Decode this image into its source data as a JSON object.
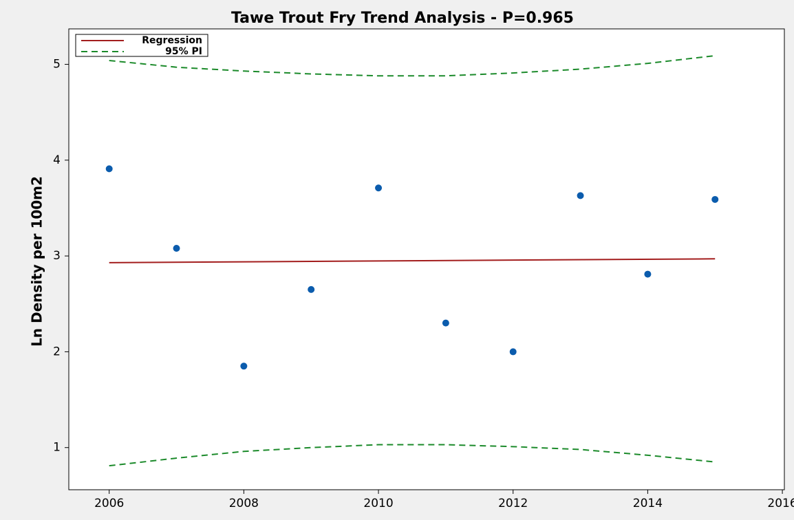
{
  "chart_data": {
    "type": "scatter",
    "title": "Tawe Trout Fry Trend Analysis - P=0.965",
    "ylabel": "Ln Density per 100m2",
    "x": [
      2006,
      2007,
      2008,
      2009,
      2010,
      2011,
      2012,
      2013,
      2014,
      2015
    ],
    "values": [
      3.91,
      3.08,
      1.85,
      2.65,
      3.71,
      2.3,
      2.0,
      3.63,
      2.81,
      3.59
    ],
    "color": "#0b5cad",
    "series": [
      {
        "name": "Regression",
        "color": "#a31d1d",
        "dashed": false,
        "x": [
          2006,
          2015
        ],
        "values": [
          2.93,
          2.97
        ]
      },
      {
        "name": "95% PI",
        "color": "#1b8a2a",
        "dashed": true,
        "x": [
          2006,
          2007,
          2008,
          2009,
          2010,
          2011,
          2012,
          2013,
          2014,
          2015
        ],
        "values": [
          5.04,
          4.97,
          4.93,
          4.9,
          4.88,
          4.88,
          4.91,
          4.95,
          5.01,
          5.09
        ],
        "lower": [
          0.81,
          0.89,
          0.96,
          1.0,
          1.03,
          1.03,
          1.01,
          0.98,
          0.92,
          0.85
        ]
      }
    ],
    "xlim": [
      2005.4,
      2016.03
    ],
    "ylim": [
      0.56,
      5.37
    ],
    "xticks": [
      2006,
      2008,
      2010,
      2012,
      2014,
      2016
    ],
    "yticks": [
      1,
      2,
      3,
      4,
      5
    ],
    "grid": false,
    "legend": "top-left"
  }
}
